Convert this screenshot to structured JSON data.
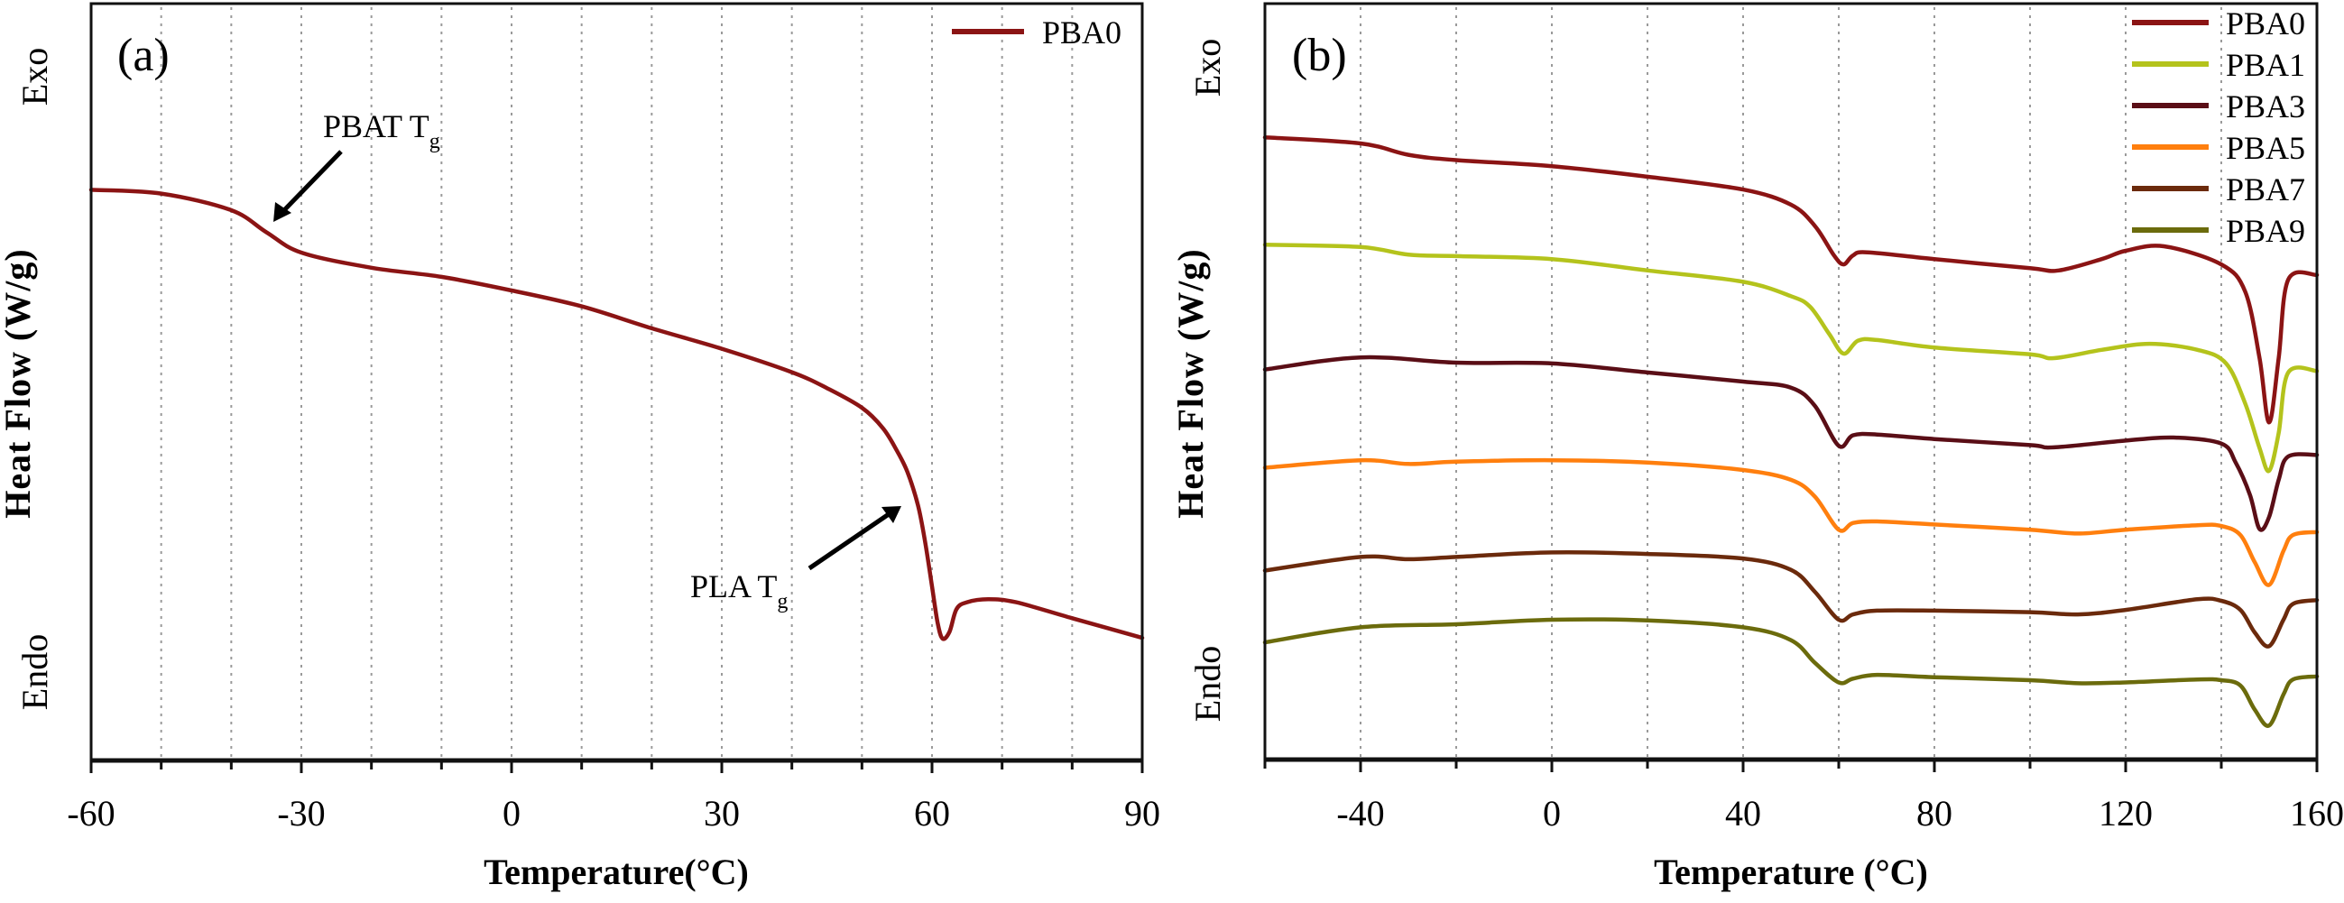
{
  "figure": {
    "panels": [
      {
        "id": "a",
        "panel_label": "(a)",
        "exo_label": "Exo",
        "endo_label": "Endo",
        "ylabel": "Heat Flow (W/g)",
        "xlabel": "Temperature(°C)"
      },
      {
        "id": "b",
        "panel_label": "(b)",
        "exo_label": "Exo",
        "endo_label": "Endo",
        "ylabel": "Heat Flow (W/g)",
        "xlabel": "Temperature (°C)"
      }
    ]
  },
  "chart_data": [
    {
      "type": "line",
      "title": "(a)",
      "xlabel": "Temperature(°C)",
      "ylabel": "Heat Flow (W/g)",
      "y_units_note": "relative units (no y tick values shown); 0 = bottom axis, 100 = top of plot",
      "xlim": [
        -60,
        90
      ],
      "ylim": [
        0,
        100
      ],
      "xticks": [
        -60,
        -30,
        0,
        30,
        60,
        90
      ],
      "xtick_labels": [
        "-60",
        "-30",
        "0",
        "30",
        "60",
        "90"
      ],
      "minor_xticks": [
        -50,
        -40,
        -20,
        -10,
        10,
        20,
        40,
        50,
        70,
        80
      ],
      "grid": "vertical dotted lines every 10°C",
      "legend_position": "top-right",
      "side_labels": {
        "top": "Exo",
        "bottom": "Endo"
      },
      "annotations": [
        {
          "text": "PBAT T",
          "subscript": "g",
          "points_to_x": -34
        },
        {
          "text": "PLA T",
          "subscript": "g",
          "points_to_x": 57
        }
      ],
      "series": [
        {
          "name": "PBA0",
          "color": "#8b1414",
          "x": [
            -60,
            -50,
            -40,
            -35,
            -30,
            -20,
            -10,
            0,
            10,
            20,
            30,
            40,
            45,
            50,
            53,
            55,
            56.5,
            58,
            59,
            60,
            60.8,
            61.5,
            62.5,
            63.5,
            65,
            68,
            72,
            80,
            90
          ],
          "y": [
            75.4,
            74.9,
            72.7,
            69.8,
            67.1,
            65.1,
            63.9,
            62.1,
            60.0,
            57.1,
            54.4,
            51.3,
            49.2,
            46.6,
            43.9,
            40.9,
            38.1,
            33.7,
            29.0,
            23.0,
            18.2,
            16.1,
            17.0,
            20.0,
            20.9,
            21.3,
            20.9,
            18.8,
            16.2
          ]
        }
      ]
    },
    {
      "type": "line",
      "title": "(b)",
      "xlabel": "Temperature (°C)",
      "ylabel": "Heat Flow (W/g)",
      "y_units_note": "relative units (no y tick values shown); curves vertically offset; 0 = bottom axis, 100 = top of plot",
      "xlim": [
        -60,
        160
      ],
      "ylim": [
        0,
        100
      ],
      "xticks": [
        -40,
        0,
        40,
        80,
        120,
        160
      ],
      "xtick_labels": [
        "-40",
        "0",
        "40",
        "80",
        "120",
        "160"
      ],
      "minor_xticks": [
        -60,
        -20,
        20,
        60,
        100,
        140
      ],
      "grid": "vertical dotted lines every 20°C",
      "legend_position": "top-right",
      "side_labels": {
        "top": "Exo",
        "bottom": "Endo"
      },
      "series": [
        {
          "name": "PBA0",
          "color": "#8b1414",
          "x": [
            -60,
            -40,
            -30,
            -20,
            0,
            20,
            40,
            50,
            55,
            59,
            61,
            63,
            66,
            80,
            100,
            106,
            115,
            120,
            128,
            140,
            145,
            148,
            150,
            152,
            154,
            160
          ],
          "y": [
            82.3,
            81.5,
            80.0,
            79.3,
            78.5,
            77.1,
            75.4,
            73.4,
            70.6,
            66.7,
            65.5,
            66.7,
            67.1,
            66.2,
            65.0,
            64.7,
            66.2,
            67.3,
            67.9,
            65.5,
            61.9,
            53.1,
            44.6,
            53.1,
            63.5,
            64.1
          ]
        },
        {
          "name": "PBA1",
          "color": "#b4c31c",
          "x": [
            -60,
            -40,
            -30,
            -20,
            0,
            20,
            40,
            50,
            54,
            58,
            61,
            64,
            68,
            80,
            100,
            105,
            115,
            125,
            135,
            141,
            145,
            148,
            150,
            152,
            154,
            160
          ],
          "y": [
            68.1,
            67.8,
            66.8,
            66.6,
            66.2,
            64.7,
            63.2,
            61.3,
            59.9,
            56.3,
            53.7,
            55.4,
            55.5,
            54.5,
            53.6,
            53.1,
            54.2,
            55.0,
            54.2,
            52.4,
            47.1,
            41.2,
            38.2,
            43.2,
            51.2,
            51.4
          ]
        },
        {
          "name": "PBA3",
          "color": "#5a0e16",
          "x": [
            -60,
            -40,
            -20,
            0,
            20,
            40,
            50,
            55,
            60,
            63,
            68,
            80,
            100,
            105,
            120,
            130,
            140,
            143,
            146,
            148,
            150,
            152,
            154,
            160
          ],
          "y": [
            51.6,
            53.2,
            52.5,
            52.4,
            51.2,
            50.0,
            49.2,
            46.8,
            41.5,
            42.9,
            43.0,
            42.4,
            41.6,
            41.3,
            42.2,
            42.6,
            41.8,
            39.3,
            35.0,
            30.5,
            32.1,
            37.0,
            40.1,
            40.3
          ]
        },
        {
          "name": "PBA5",
          "color": "#ff7f0e",
          "x": [
            -60,
            -40,
            -30,
            -20,
            0,
            20,
            40,
            50,
            55,
            60,
            63,
            68,
            80,
            100,
            110,
            120,
            135,
            140,
            144,
            147,
            150,
            153,
            155,
            160
          ],
          "y": [
            38.6,
            39.6,
            39.1,
            39.4,
            39.6,
            39.3,
            38.3,
            37.0,
            34.8,
            30.4,
            31.3,
            31.5,
            31.1,
            30.4,
            29.9,
            30.4,
            31.0,
            30.9,
            29.7,
            26.1,
            23.1,
            27.6,
            29.7,
            30.1
          ]
        },
        {
          "name": "PBA7",
          "color": "#6b2a0c",
          "x": [
            -60,
            -40,
            -30,
            -20,
            0,
            20,
            40,
            50,
            55,
            60,
            63,
            68,
            80,
            100,
            110,
            120,
            135,
            140,
            144,
            147,
            150,
            153,
            155,
            160
          ],
          "y": [
            25.0,
            26.8,
            26.5,
            26.8,
            27.4,
            27.2,
            26.6,
            25.1,
            22.2,
            18.5,
            19.2,
            19.7,
            19.7,
            19.5,
            19.2,
            19.8,
            21.2,
            21.0,
            19.8,
            16.8,
            15.0,
            18.5,
            20.6,
            21.1
          ]
        },
        {
          "name": "PBA9",
          "color": "#6b6b0c",
          "x": [
            -60,
            -40,
            -20,
            0,
            20,
            40,
            50,
            55,
            60,
            63,
            68,
            80,
            100,
            110,
            120,
            135,
            140,
            144,
            147,
            150,
            153,
            155,
            160
          ],
          "y": [
            15.5,
            17.5,
            17.9,
            18.5,
            18.4,
            17.5,
            15.8,
            12.8,
            10.2,
            10.7,
            11.2,
            10.9,
            10.5,
            10.1,
            10.2,
            10.6,
            10.5,
            9.8,
            6.6,
            4.5,
            8.6,
            10.6,
            11.0
          ]
        }
      ]
    }
  ]
}
